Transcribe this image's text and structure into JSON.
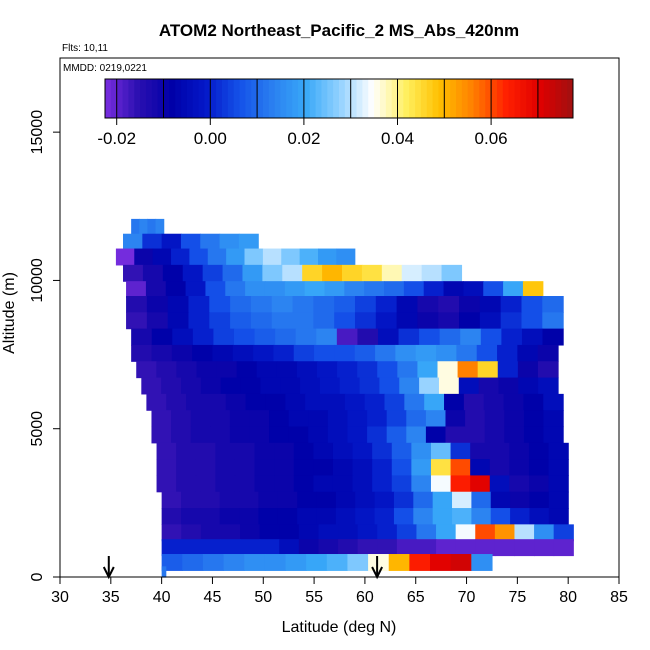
{
  "chart_data": {
    "type": "heatmap",
    "title": "ATOM2 Northeast_Pacific_2 MS_Abs_420nm",
    "notes": [
      "Flts: 10,11",
      "MMDD: 0219,0221"
    ],
    "xlabel": "Latitude (deg N)",
    "ylabel": "Altitude (m)",
    "xlim": [
      30,
      85
    ],
    "ylim": [
      0,
      17500
    ],
    "x_ticks": [
      "30",
      "35",
      "40",
      "45",
      "50",
      "55",
      "60",
      "65",
      "70",
      "75",
      "80",
      "85"
    ],
    "y_ticks": [
      "0",
      "5000",
      "10000",
      "15000"
    ],
    "colorbar": {
      "position": "top",
      "range": [
        -0.0225,
        0.0775
      ],
      "tick_values": [
        -0.02,
        0.0,
        0.02,
        0.04,
        0.06
      ],
      "tick_labels": [
        "-0.02",
        "0.00",
        "0.02",
        "0.04",
        "0.06"
      ],
      "colors": [
        "#7a2ee0",
        "#2a0fb0",
        "#0000a8",
        "#0418c8",
        "#1450e8",
        "#2a7ff0",
        "#38a8f8",
        "#90d0ff",
        "#ffffff",
        "#fff060",
        "#ffc000",
        "#ff8000",
        "#ff2000",
        "#e00000",
        "#a01010"
      ]
    },
    "arrows_lat": [
      34.8,
      61.2
    ],
    "rows": [
      {
        "alt": 11800,
        "lat0": 37,
        "lat1": 40.2,
        "vals": [
          0.012,
          0.014,
          0.012,
          0.014
        ]
      },
      {
        "alt": 11300,
        "lat0": 36.2,
        "lat1": 49.5,
        "vals": [
          0.014,
          0.002,
          -0.002,
          0.006,
          0.012,
          0.016,
          0.018
        ]
      },
      {
        "alt": 10800,
        "lat0": 35.5,
        "lat1": 59,
        "vals": [
          -0.022,
          -0.01,
          -0.006,
          0.0,
          0.006,
          0.012,
          0.018,
          0.026,
          0.03,
          0.026,
          0.022,
          0.018,
          0.016
        ]
      },
      {
        "alt": 10250,
        "lat0": 36.2,
        "lat1": 69.5,
        "vals": [
          -0.016,
          -0.012,
          -0.008,
          -0.002,
          0.004,
          0.01,
          0.018,
          0.026,
          0.03,
          0.046,
          0.05,
          0.046,
          0.044,
          0.038,
          0.032,
          0.03,
          0.026
        ]
      },
      {
        "alt": 9700,
        "lat0": 36.5,
        "lat1": 77.5,
        "vals": [
          -0.02,
          -0.012,
          -0.008,
          -0.002,
          0.006,
          0.012,
          0.016,
          0.016,
          0.018,
          0.02,
          0.018,
          0.014,
          0.012,
          0.01,
          0.006,
          0.0,
          -0.006,
          -0.004,
          0.006,
          0.02,
          0.048
        ]
      },
      {
        "alt": 9200,
        "lat0": 36.5,
        "lat1": 79.5,
        "vals": [
          -0.014,
          -0.01,
          -0.006,
          0.0,
          0.006,
          0.01,
          0.012,
          0.014,
          0.012,
          0.01,
          0.008,
          0.004,
          0.0,
          -0.006,
          -0.012,
          -0.014,
          -0.01,
          -0.006,
          0.0,
          0.006,
          0.01
        ]
      },
      {
        "alt": 8650,
        "lat0": 36.5,
        "lat1": 79.5,
        "vals": [
          -0.016,
          -0.012,
          -0.006,
          0.0,
          0.004,
          0.008,
          0.01,
          0.012,
          0.012,
          0.01,
          0.006,
          0.002,
          -0.002,
          -0.006,
          -0.01,
          -0.012,
          -0.008,
          -0.004,
          0.002,
          0.006,
          0.012
        ]
      },
      {
        "alt": 8100,
        "lat0": 37,
        "lat1": 79.5,
        "vals": [
          -0.012,
          -0.008,
          -0.004,
          0.0,
          0.004,
          0.006,
          0.008,
          0.01,
          0.012,
          0.014,
          -0.018,
          -0.014,
          -0.004,
          0.002,
          0.006,
          0.01,
          0.014,
          0.006,
          0.0,
          -0.004,
          -0.008
        ]
      },
      {
        "alt": 7550,
        "lat0": 37,
        "lat1": 79,
        "vals": [
          -0.014,
          -0.012,
          -0.01,
          -0.008,
          -0.006,
          -0.004,
          -0.002,
          0.0,
          0.004,
          0.006,
          0.006,
          0.008,
          0.012,
          0.016,
          0.018,
          0.016,
          0.012,
          0.006,
          0.0,
          -0.006,
          -0.01
        ]
      },
      {
        "alt": 7000,
        "lat0": 37.5,
        "lat1": 79,
        "vals": [
          -0.016,
          -0.014,
          -0.012,
          -0.01,
          -0.01,
          -0.008,
          -0.006,
          -0.006,
          -0.004,
          -0.002,
          0.0,
          0.002,
          0.006,
          0.012,
          0.02,
          0.036,
          0.056,
          0.046,
          0.0,
          -0.01,
          -0.014
        ]
      },
      {
        "alt": 6450,
        "lat0": 38,
        "lat1": 79,
        "vals": [
          -0.016,
          -0.014,
          -0.012,
          -0.01,
          -0.008,
          -0.008,
          -0.006,
          -0.006,
          -0.004,
          -0.002,
          0.0,
          0.002,
          0.006,
          0.014,
          0.028,
          0.036,
          -0.004,
          -0.012,
          -0.01,
          -0.006,
          -0.004
        ]
      },
      {
        "alt": 5900,
        "lat0": 38.5,
        "lat1": 79.5,
        "vals": [
          -0.016,
          -0.014,
          -0.012,
          -0.012,
          -0.01,
          -0.008,
          -0.008,
          -0.006,
          -0.004,
          -0.004,
          -0.002,
          0.0,
          0.004,
          0.012,
          0.02,
          -0.008,
          -0.014,
          -0.012,
          -0.01,
          -0.008,
          -0.004
        ]
      },
      {
        "alt": 5350,
        "lat0": 39,
        "lat1": 79.5,
        "vals": [
          -0.016,
          -0.014,
          -0.012,
          -0.012,
          -0.01,
          -0.01,
          -0.008,
          -0.006,
          -0.006,
          -0.004,
          -0.002,
          0.0,
          0.004,
          0.01,
          0.014,
          -0.01,
          -0.014,
          -0.012,
          -0.01,
          -0.008,
          -0.006
        ]
      },
      {
        "alt": 4800,
        "lat0": 39,
        "lat1": 79.5,
        "vals": [
          -0.016,
          -0.014,
          -0.012,
          -0.012,
          -0.01,
          -0.01,
          -0.008,
          -0.008,
          -0.006,
          -0.004,
          -0.002,
          0.002,
          0.008,
          0.014,
          -0.008,
          -0.014,
          -0.014,
          -0.012,
          -0.01,
          -0.008,
          -0.006
        ]
      },
      {
        "alt": 4250,
        "lat0": 39.5,
        "lat1": 80,
        "vals": [
          -0.016,
          -0.014,
          -0.014,
          -0.012,
          -0.012,
          -0.01,
          -0.01,
          -0.008,
          -0.006,
          -0.004,
          -0.002,
          0.002,
          0.008,
          0.016,
          0.024,
          0.002,
          -0.012,
          -0.012,
          -0.01,
          -0.008,
          -0.006
        ]
      },
      {
        "alt": 3700,
        "lat0": 39.5,
        "lat1": 80,
        "vals": [
          -0.016,
          -0.014,
          -0.014,
          -0.012,
          -0.012,
          -0.01,
          -0.01,
          -0.008,
          -0.008,
          -0.006,
          -0.004,
          0.0,
          0.006,
          0.018,
          0.044,
          0.06,
          -0.006,
          -0.012,
          -0.01,
          -0.008,
          -0.006
        ]
      },
      {
        "alt": 3150,
        "lat0": 39.5,
        "lat1": 80,
        "vals": [
          -0.016,
          -0.014,
          -0.014,
          -0.012,
          -0.012,
          -0.01,
          -0.01,
          -0.008,
          -0.006,
          -0.006,
          -0.004,
          0.0,
          0.004,
          0.014,
          0.034,
          0.064,
          0.07,
          -0.004,
          -0.012,
          -0.01,
          -0.006
        ]
      },
      {
        "alt": 2600,
        "lat0": 40,
        "lat1": 80,
        "vals": [
          -0.016,
          -0.014,
          -0.014,
          -0.012,
          -0.012,
          -0.01,
          -0.01,
          -0.008,
          -0.008,
          -0.006,
          -0.004,
          -0.002,
          0.002,
          0.01,
          0.02,
          0.032,
          0.01,
          -0.006,
          -0.01,
          -0.008,
          -0.006
        ]
      },
      {
        "alt": 2050,
        "lat0": 40,
        "lat1": 80,
        "vals": [
          -0.014,
          -0.012,
          -0.012,
          -0.01,
          -0.01,
          -0.008,
          -0.008,
          -0.006,
          -0.006,
          -0.004,
          -0.002,
          0.0,
          0.006,
          0.014,
          0.02,
          0.022,
          0.014,
          0.006,
          0.0,
          -0.004,
          -0.006
        ]
      },
      {
        "alt": 1500,
        "lat0": 40,
        "lat1": 80.5,
        "vals": [
          -0.016,
          -0.014,
          -0.012,
          -0.012,
          -0.01,
          -0.008,
          -0.008,
          -0.006,
          -0.004,
          -0.004,
          -0.002,
          0.0,
          0.004,
          0.012,
          0.02,
          0.034,
          0.06,
          0.054,
          0.03,
          0.016,
          0.004
        ]
      },
      {
        "alt": 1000,
        "lat0": 40,
        "lat1": 80.5,
        "vals": [
          0.0,
          0.0,
          0.0,
          0.0,
          0.0,
          0.0,
          -0.004,
          -0.01,
          -0.012,
          -0.014,
          -0.016,
          -0.016,
          -0.018,
          -0.018,
          -0.02,
          -0.02,
          -0.02,
          -0.02,
          -0.02,
          -0.02,
          -0.02
        ]
      },
      {
        "alt": 500,
        "lat0": 40,
        "lat1": 72.5,
        "vals": [
          0.008,
          0.01,
          0.012,
          0.014,
          0.016,
          0.016,
          0.018,
          0.02,
          0.022,
          0.026,
          0.036,
          0.05,
          0.064,
          0.07,
          0.072,
          0.016
        ]
      },
      {
        "alt": 180,
        "lat0": 40,
        "lat1": 40.4,
        "vals": [
          0.012
        ]
      }
    ]
  }
}
